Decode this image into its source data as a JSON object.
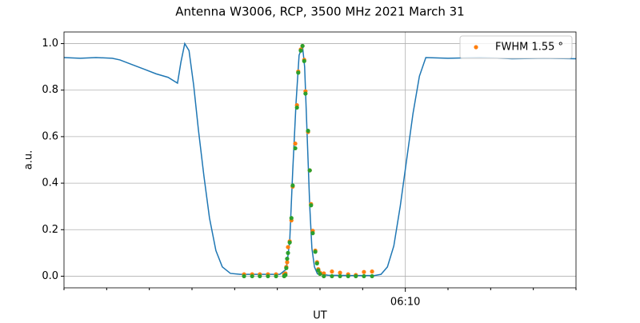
{
  "chart_data": {
    "type": "line",
    "title": "Antenna W3006, RCP, 3500 MHz 2021 March 31",
    "x_label": "UT",
    "y_label": "a.u.",
    "xlim": [
      362,
      374
    ],
    "xticks": [
      {
        "value": 370,
        "label": "06:10"
      }
    ],
    "xminorticks": [
      362,
      363,
      364,
      365,
      366,
      367,
      368,
      369,
      371,
      372,
      373,
      374
    ],
    "ylim": [
      -0.05,
      1.05
    ],
    "yticks": [
      {
        "value": 0,
        "label": "0.0"
      },
      0.2,
      0.4,
      0.6,
      0.8,
      {
        "value": 1,
        "label": "1.0"
      }
    ],
    "grid": true,
    "legend": "upper right",
    "series": [
      {
        "type": "line",
        "color": "#1f77b4",
        "x": [
          362.0,
          362.38,
          362.75,
          363.13,
          363.31,
          363.59,
          363.88,
          364.16,
          364.44,
          364.66,
          364.74,
          364.83,
          364.93,
          365.04,
          365.15,
          365.28,
          365.41,
          365.56,
          365.71,
          365.9,
          366.13,
          366.69,
          367.06,
          367.21,
          367.29,
          367.36,
          367.44,
          367.51,
          367.59,
          367.64,
          367.7,
          367.76,
          367.81,
          367.87,
          367.94,
          368.19,
          368.75,
          369.28,
          369.43,
          369.58,
          369.73,
          369.88,
          370.03,
          370.18,
          370.33,
          370.48,
          371.0,
          371.75,
          372.5,
          373.25,
          374.0
        ],
        "values": [
          0.94,
          0.937,
          0.94,
          0.937,
          0.93,
          0.91,
          0.89,
          0.87,
          0.855,
          0.83,
          0.92,
          1.0,
          0.97,
          0.82,
          0.63,
          0.43,
          0.25,
          0.11,
          0.04,
          0.012,
          0.008,
          0.008,
          0.008,
          0.03,
          0.15,
          0.45,
          0.75,
          0.95,
          0.99,
          0.9,
          0.6,
          0.3,
          0.12,
          0.04,
          0.01,
          0.004,
          0.003,
          0.003,
          0.008,
          0.04,
          0.13,
          0.3,
          0.5,
          0.7,
          0.86,
          0.94,
          0.937,
          0.94,
          0.935,
          0.937,
          0.935
        ]
      },
      {
        "type": "scatter",
        "name": "FWHM 1.55 °",
        "color": "#ff7f0e",
        "x": [
          366.22,
          366.41,
          366.59,
          366.78,
          366.97,
          367.16,
          367.19,
          367.21,
          367.23,
          367.25,
          367.29,
          367.33,
          367.36,
          367.42,
          367.46,
          367.49,
          367.55,
          367.59,
          367.63,
          367.66,
          367.72,
          367.76,
          367.79,
          367.83,
          367.89,
          367.93,
          367.96,
          368.0,
          368.09,
          368.28,
          368.47,
          368.66,
          368.84,
          369.03,
          369.22
        ],
        "values": [
          0.008,
          0.008,
          0.008,
          0.008,
          0.008,
          0.008,
          0.012,
          0.04,
          0.06,
          0.125,
          0.15,
          0.24,
          0.385,
          0.57,
          0.735,
          0.88,
          0.975,
          0.99,
          0.93,
          0.795,
          0.62,
          0.455,
          0.31,
          0.195,
          0.11,
          0.06,
          0.03,
          0.015,
          0.012,
          0.02,
          0.015,
          0.008,
          0.005,
          0.018,
          0.02
        ]
      },
      {
        "type": "scatter",
        "color": "#2ca02c",
        "x": [
          366.22,
          366.41,
          366.59,
          366.78,
          366.97,
          367.16,
          367.19,
          367.21,
          367.23,
          367.25,
          367.29,
          367.33,
          367.36,
          367.42,
          367.46,
          367.49,
          367.55,
          367.59,
          367.63,
          367.66,
          367.72,
          367.76,
          367.79,
          367.83,
          367.89,
          367.93,
          367.96,
          368.0,
          368.09,
          368.28,
          368.47,
          368.66,
          368.84,
          369.03,
          369.22
        ],
        "values": [
          0,
          0,
          0,
          0,
          0,
          0,
          0.005,
          0.035,
          0.075,
          0.1,
          0.145,
          0.25,
          0.39,
          0.55,
          0.725,
          0.875,
          0.97,
          0.99,
          0.925,
          0.785,
          0.625,
          0.455,
          0.305,
          0.185,
          0.105,
          0.055,
          0.025,
          0.01,
          0,
          0,
          0,
          0,
          0,
          0,
          0
        ]
      }
    ]
  }
}
